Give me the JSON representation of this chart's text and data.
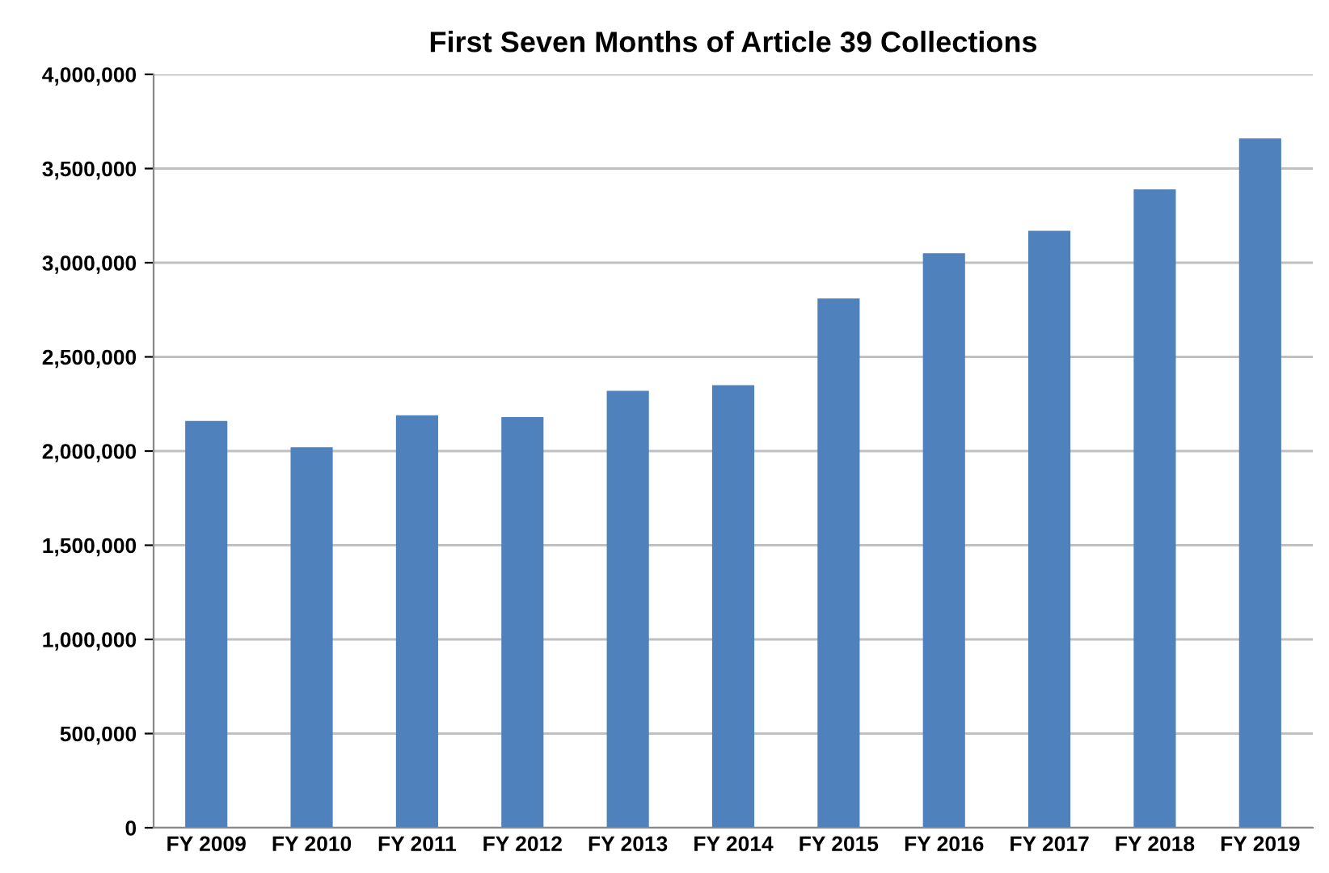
{
  "chart_data": {
    "type": "bar",
    "title": "First Seven Months of Article 39 Collections",
    "categories": [
      "FY 2009",
      "FY 2010",
      "FY 2011",
      "FY 2012",
      "FY 2013",
      "FY 2014",
      "FY 2015",
      "FY 2016",
      "FY 2017",
      "FY 2018",
      "FY 2019"
    ],
    "values": [
      2160000,
      2020000,
      2190000,
      2180000,
      2320000,
      2350000,
      2810000,
      3050000,
      3170000,
      3390000,
      3660000
    ],
    "color": "#4f81bd",
    "ylim": [
      0,
      4000000
    ],
    "yticks": [
      {
        "value": 0,
        "label": "0"
      },
      {
        "value": 500000,
        "label": "500,000"
      },
      {
        "value": 1000000,
        "label": "1,000,000"
      },
      {
        "value": 1500000,
        "label": "1,500,000"
      },
      {
        "value": 2000000,
        "label": "2,000,000"
      },
      {
        "value": 2500000,
        "label": "2,500,000"
      },
      {
        "value": 3000000,
        "label": "3,000,000"
      },
      {
        "value": 3500000,
        "label": "3,500,000"
      },
      {
        "value": 4000000,
        "label": "4,000,000"
      }
    ],
    "grid": "y"
  }
}
